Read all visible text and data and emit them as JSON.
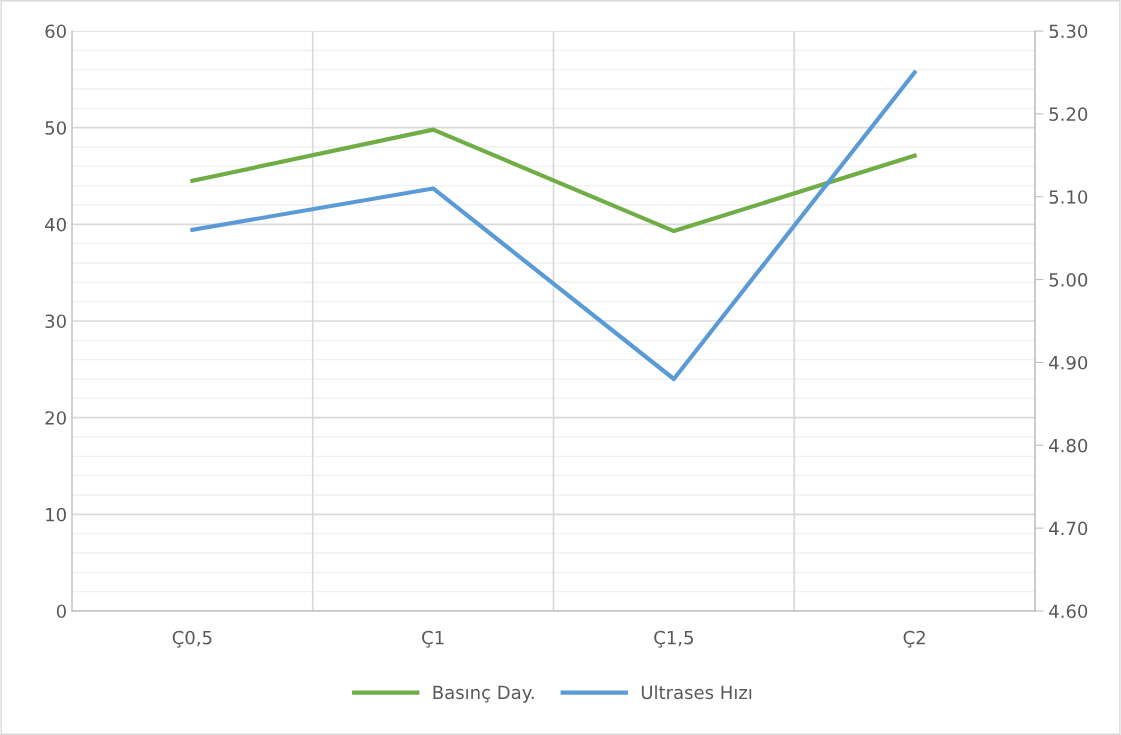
{
  "chart_data": {
    "type": "line",
    "categories": [
      "Ç0,5",
      "Ç1",
      "Ç1,5",
      "Ç2"
    ],
    "series": [
      {
        "name": "Basınç Day.",
        "color": "#70ad47",
        "values": [
          44.5,
          49.8,
          39.3,
          47.1
        ]
      },
      {
        "name": "Ultrases Hızı",
        "color": "#5b9bd5",
        "values": [
          5.06,
          5.11,
          4.88,
          5.25
        ],
        "axis": "y2"
      }
    ],
    "ylim": [
      0,
      60
    ],
    "yticks": [
      0,
      10,
      20,
      30,
      40,
      50,
      60
    ],
    "y2lim": [
      4.6,
      5.3
    ],
    "y2ticks": [
      {
        "value": 4.6,
        "label": "4.60"
      },
      {
        "value": 4.7,
        "label": "4.70"
      },
      {
        "value": 4.8,
        "label": "4.80"
      },
      {
        "value": 4.9,
        "label": "4.90"
      },
      {
        "value": 5.0,
        "label": "5.00"
      },
      {
        "value": 5.1,
        "label": "5.10"
      },
      {
        "value": 5.2,
        "label": "5.20"
      },
      {
        "value": 5.3,
        "label": "5.30"
      }
    ],
    "grid": true,
    "legend": "bottom",
    "marker": "none",
    "line_style": "solid"
  }
}
